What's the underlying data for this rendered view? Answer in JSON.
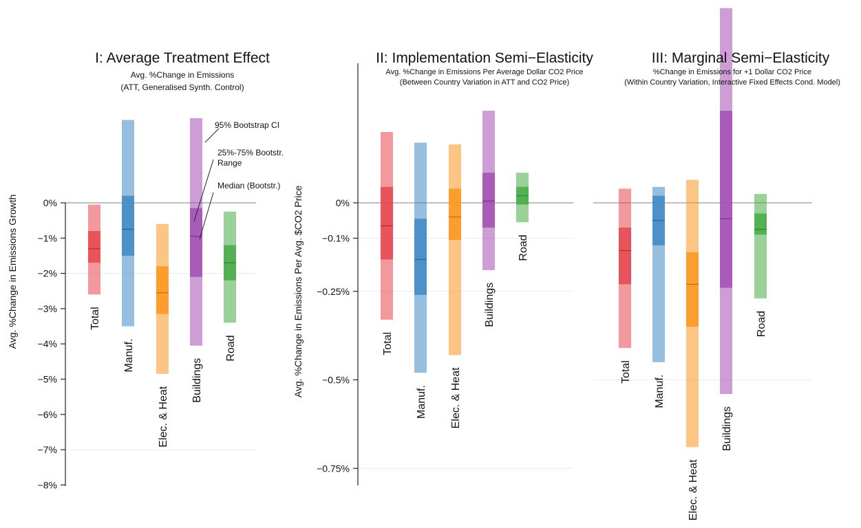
{
  "colors": {
    "Total": "#e8464e",
    "Manuf.": "#3f8ac4",
    "Elec. & Heat": "#fb951e",
    "Buildings": "#a24fb3",
    "Road": "#46ac46",
    "axis": "#222222",
    "zero_line": "#7f7f7f"
  },
  "annotations": {
    "ci95": "95% Bootstrap CI",
    "iqr_line1": "25%-75% Bootstr.",
    "iqr_line2": "Range",
    "median": "Median (Bootstr.)"
  },
  "chart_data": [
    {
      "type": "range-bar",
      "title": "I: Average Treatment Effect",
      "subtitle": [
        "Avg. %Change in Emissions",
        "(ATT, Generalised Synth. Control)"
      ],
      "ylabel": "Avg. %Change in Emissions Growth",
      "ylim": [
        -8,
        0
      ],
      "yticks": [
        0,
        -1,
        -2,
        -3,
        -4,
        -5,
        -6,
        -7,
        -8
      ],
      "ytick_labels": [
        "0%",
        "−1%",
        "−2%",
        "−3%",
        "−4%",
        "−5%",
        "−6%",
        "−7%",
        "−8%"
      ],
      "grid": true,
      "categories": [
        "Total",
        "Manuf.",
        "Elec. & Heat",
        "Buildings",
        "Road"
      ],
      "ci95_low": [
        -2.6,
        -3.5,
        -4.85,
        -4.05,
        -3.4
      ],
      "ci95_high": [
        -0.05,
        2.35,
        -0.6,
        2.4,
        -0.25
      ],
      "q25": [
        -1.7,
        -1.5,
        -3.15,
        -2.1,
        -2.2
      ],
      "q75": [
        -0.8,
        0.2,
        -1.8,
        -0.15,
        -1.2
      ],
      "median": [
        -1.3,
        -0.75,
        -2.55,
        -0.95,
        -1.7
      ]
    },
    {
      "type": "range-bar",
      "title": "II: Implementation Semi−Elasticity",
      "subtitle": [
        "Avg. %Change in Emissions Per Average Dollar CO2 Price",
        "(Between Country Variation in ATT and CO2 Price)"
      ],
      "ylabel": "Avg. %Change in Emissions Per Avg. $CO2 Price",
      "ylim": [
        -0.8,
        0.4
      ],
      "yticks": [
        0,
        -0.1,
        -0.25,
        -0.5,
        -0.75
      ],
      "ytick_labels": [
        "0%",
        "−0.1%",
        "−0.25%",
        "−0.5%",
        "−0.75%"
      ],
      "grid": true,
      "categories": [
        "Total",
        "Manuf.",
        "Elec. & Heat",
        "Buildings",
        "Road"
      ],
      "ci95_low": [
        -0.33,
        -0.48,
        -0.43,
        -0.19,
        -0.055
      ],
      "ci95_high": [
        0.2,
        0.17,
        0.165,
        0.26,
        0.085
      ],
      "q25": [
        -0.16,
        -0.26,
        -0.105,
        -0.07,
        -0.005
      ],
      "q75": [
        0.045,
        -0.045,
        0.04,
        0.085,
        0.045
      ],
      "median": [
        -0.065,
        -0.16,
        -0.04,
        0.005,
        0.02
      ]
    },
    {
      "type": "range-bar",
      "title": "III: Marginal Semi−Elasticity",
      "subtitle": [
        "%Change in Emissions for +1 Dollar CO2 Price",
        "(Within Country Variation, Interactive Fixed Effects Cond. Model)"
      ],
      "ylabel": "",
      "ylim": [
        -0.8,
        0.4
      ],
      "yticks": [],
      "ytick_labels": [],
      "grid": true,
      "categories": [
        "Total",
        "Manuf.",
        "Elec. & Heat",
        "Buildings",
        "Road"
      ],
      "ci95_low": [
        -0.41,
        -0.45,
        -0.69,
        -0.54,
        -0.27
      ],
      "ci95_high": [
        0.04,
        0.045,
        0.065,
        0.55,
        0.025
      ],
      "q25": [
        -0.23,
        -0.12,
        -0.35,
        -0.24,
        -0.09
      ],
      "q75": [
        -0.07,
        0.02,
        -0.14,
        0.26,
        -0.03
      ],
      "median": [
        -0.135,
        -0.05,
        -0.23,
        -0.045,
        -0.075
      ]
    }
  ]
}
